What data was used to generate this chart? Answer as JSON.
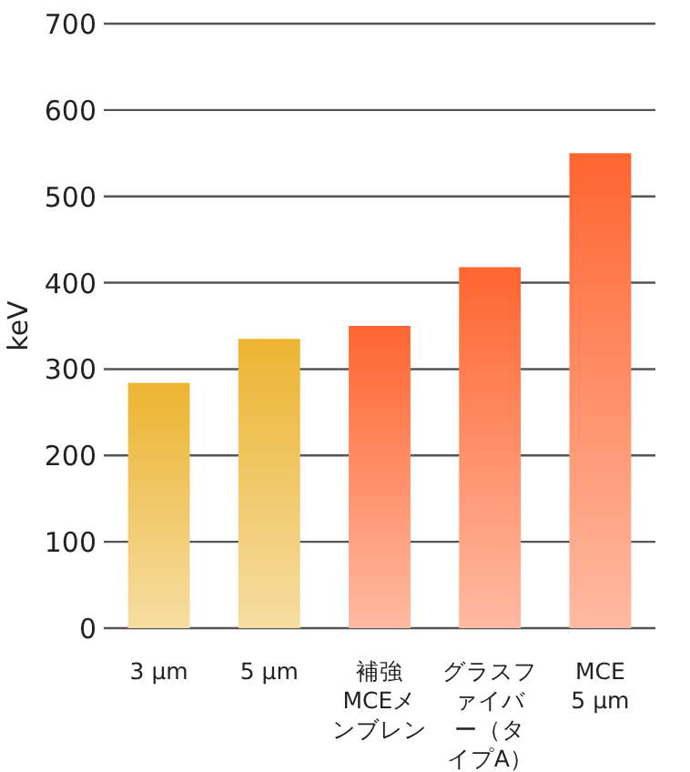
{
  "chart_data": {
    "type": "bar",
    "ylabel": "keV",
    "categories": [
      "3 μm",
      "5 μm",
      "補強MCEメンブレン",
      "グラスファイバー（タイプA）",
      "MCE 5 μm"
    ],
    "values": [
      284,
      335,
      350,
      418,
      550
    ],
    "colors": [
      "#ecb431",
      "#ecb431",
      "#ff6530",
      "#ff6530",
      "#ff6530"
    ],
    "ylim": [
      0,
      700
    ],
    "yticks": [
      0,
      100,
      200,
      300,
      400,
      500,
      600,
      700
    ],
    "grid": "y"
  }
}
